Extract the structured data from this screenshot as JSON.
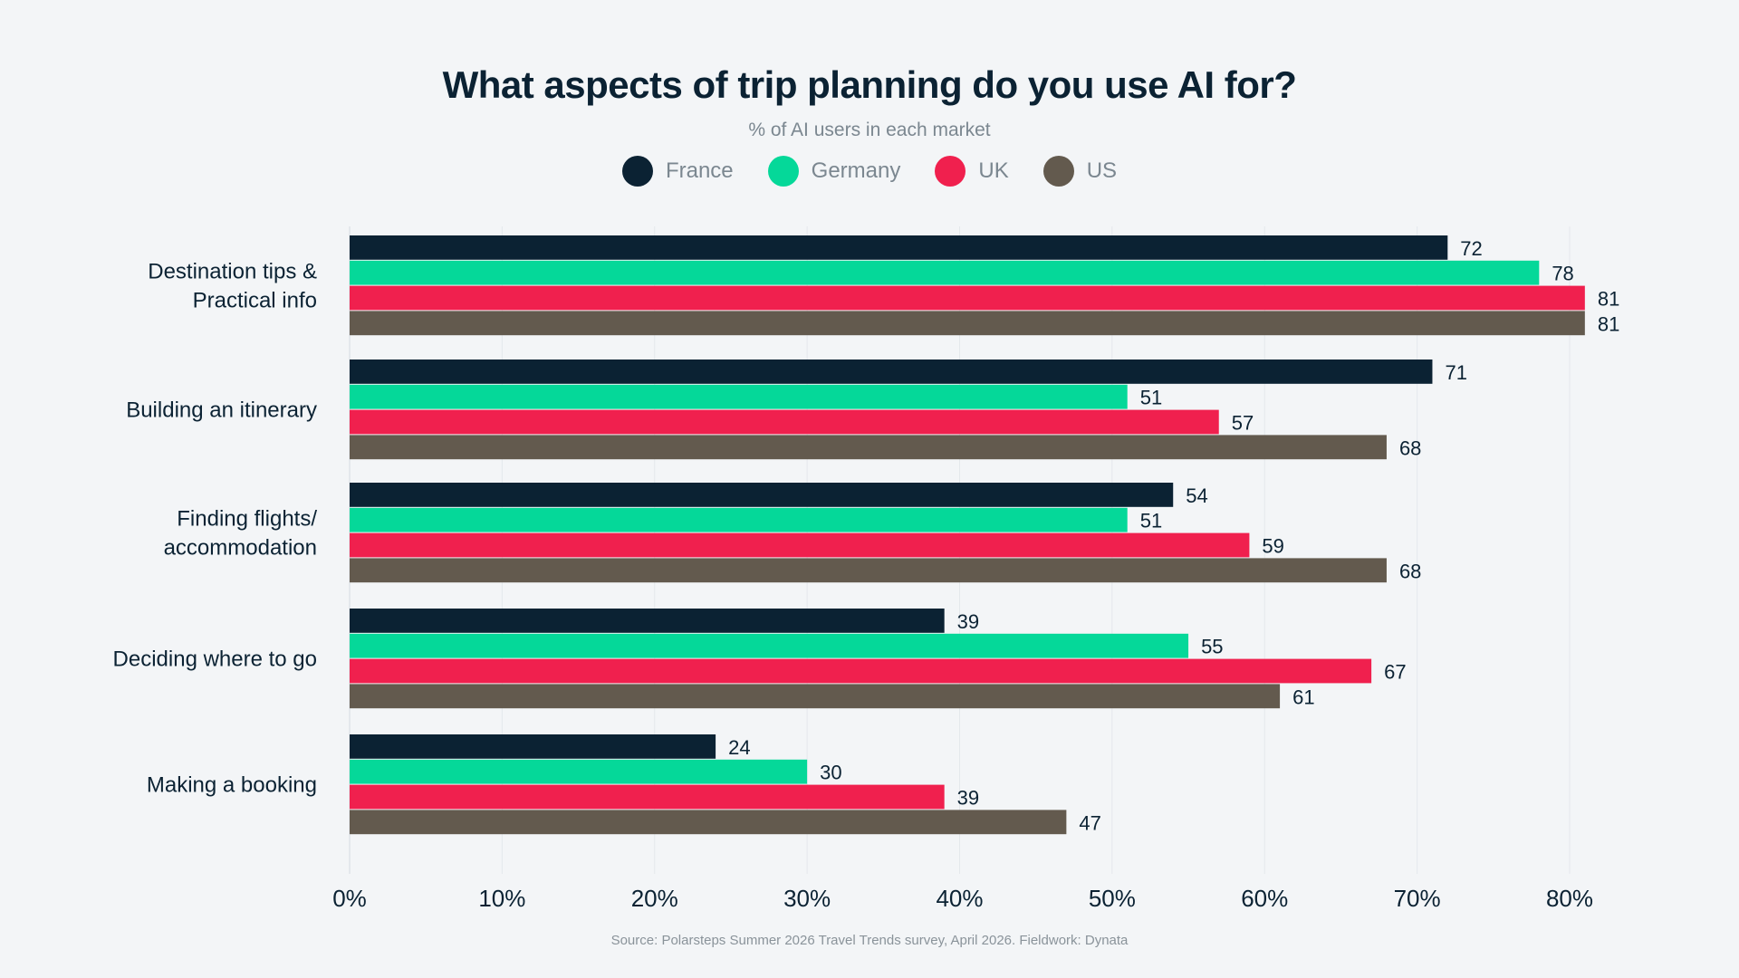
{
  "chart_data": {
    "type": "bar",
    "orientation": "horizontal",
    "title": "What aspects of trip planning do you use AI for?",
    "subtitle": "% of AI users in each market",
    "categories": [
      "Destination tips & Practical info",
      "Building an itinerary",
      "Finding flights/ accommodation",
      "Deciding where to go",
      "Making a booking"
    ],
    "category_lines": [
      [
        "Destination tips &",
        "Practical info"
      ],
      [
        "Building an itinerary"
      ],
      [
        "Finding flights/",
        "accommodation"
      ],
      [
        "Deciding where to go"
      ],
      [
        "Making a booking"
      ]
    ],
    "series": [
      {
        "name": "France",
        "color": "#0b2233",
        "values": [
          72,
          71,
          54,
          39,
          24
        ]
      },
      {
        "name": "Germany",
        "color": "#05d899",
        "values": [
          78,
          51,
          51,
          55,
          30
        ]
      },
      {
        "name": "UK",
        "color": "#f0204e",
        "values": [
          81,
          57,
          59,
          67,
          39
        ]
      },
      {
        "name": "US",
        "color": "#635a4e",
        "values": [
          81,
          68,
          68,
          61,
          47
        ]
      }
    ],
    "xlim": [
      0,
      80
    ],
    "x_ticks": [
      "0%",
      "10%",
      "20%",
      "30%",
      "40%",
      "50%",
      "60%",
      "70%",
      "80%"
    ],
    "grid": true,
    "legend_position": "top-center",
    "source": "Source: Polarsteps Summer 2026 Travel Trends survey, April 2026. Fieldwork: Dynata"
  }
}
